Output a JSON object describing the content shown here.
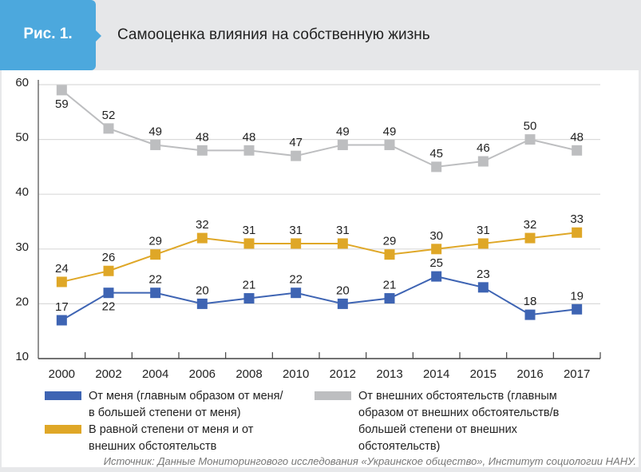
{
  "header": {
    "figure_label": "Рис. 1.",
    "title": "Самооценка влияния на собственную жизнь"
  },
  "colors": {
    "tab": "#4ca8dd",
    "series_me": "#3e64b3",
    "series_equal": "#dfa727",
    "series_external": "#bdbec0",
    "grid": "#dadada",
    "axis": "#555555"
  },
  "chart_data": {
    "type": "line",
    "title": "Самооценка влияния на собственную жизнь",
    "xlabel": "",
    "ylabel": "",
    "ylim": [
      10,
      60
    ],
    "yticks": [
      10,
      20,
      30,
      40,
      50,
      60
    ],
    "grid": true,
    "legend_position": "bottom",
    "categories": [
      "2000",
      "2002",
      "2004",
      "2006",
      "2008",
      "2010",
      "2012",
      "2013",
      "2014",
      "2015",
      "2016",
      "2017"
    ],
    "series": [
      {
        "name": "От внешних обстоятельств (главным образом от внешних обстоятельств/в большей степени от внешних обстоятельств)",
        "color": "#bdbec0",
        "values": [
          59,
          52,
          49,
          48,
          48,
          47,
          49,
          49,
          45,
          46,
          50,
          48
        ],
        "label_positions": [
          "below",
          "above",
          "above",
          "above",
          "above",
          "above",
          "above",
          "above",
          "above",
          "above",
          "above",
          "above"
        ]
      },
      {
        "name": "В равной степени от меня и от внешних обстоятельств",
        "color": "#dfa727",
        "values": [
          24,
          26,
          29,
          32,
          31,
          31,
          31,
          29,
          30,
          31,
          32,
          33
        ],
        "label_positions": [
          "above",
          "above",
          "above",
          "above",
          "above",
          "above",
          "above",
          "above",
          "above",
          "above",
          "above",
          "above"
        ]
      },
      {
        "name": "От меня (главным образом от меня/ в большей степени от меня)",
        "color": "#3e64b3",
        "values": [
          17,
          22,
          22,
          20,
          21,
          22,
          20,
          21,
          25,
          23,
          18,
          19
        ],
        "label_positions": [
          "above",
          "below",
          "above",
          "above",
          "above",
          "above",
          "above",
          "above",
          "above",
          "above",
          "above",
          "above"
        ]
      }
    ]
  },
  "legend": [
    {
      "label": "От меня (главным образом от меня/\nв большей степени от меня)",
      "color": "#3e64b3"
    },
    {
      "label": "В равной степени от меня и от\nвнешних обстоятельств",
      "color": "#dfa727"
    },
    {
      "label": "От внешних обстоятельств (главным\nобразом от внешних обстоятельств/в\nбольшей степени от внешних\nобстоятельств)",
      "color": "#bdbec0"
    }
  ],
  "source": "Источник: Данные Мониторингового исследования «Украинское общество», Институт социологии НАНУ."
}
